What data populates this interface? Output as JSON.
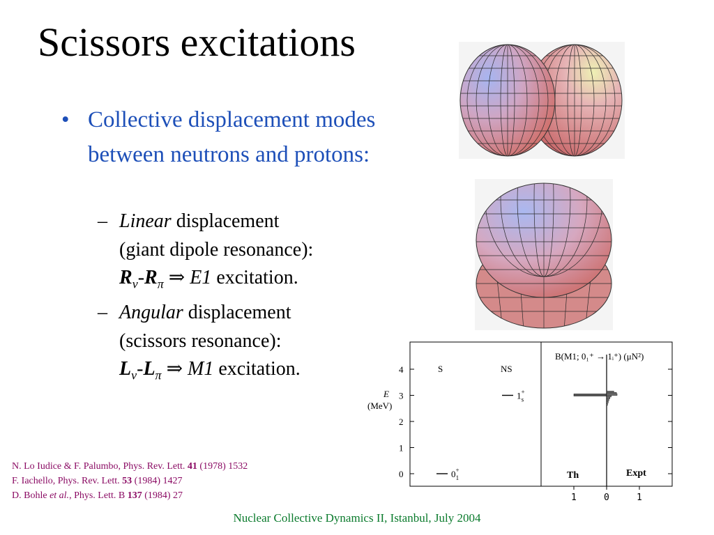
{
  "title": "Scissors excitations",
  "bullet": {
    "marker": "•",
    "text": "Collective displacement modes between neutrons and protons:"
  },
  "sub1": {
    "marker": "–",
    "italic_word": "Linear",
    "line1_rest": " displacement",
    "line2": "(giant dipole resonance):",
    "sym1": "R",
    "sub_nu": "ν",
    "sym2": "R",
    "sub_pi": "π",
    "arrow": "⇒",
    "result_italic": "E1",
    "result_rest": " excitation."
  },
  "sub2": {
    "marker": "–",
    "italic_word": "Angular",
    "line1_rest": " displacement",
    "line2": "(scissors resonance):",
    "sym1": "L",
    "sub_nu": "ν",
    "sym2": "L",
    "sub_pi": "π",
    "arrow": "⇒",
    "result_italic": "M1",
    "result_rest": " excitation."
  },
  "refs": {
    "r1_pre": "N. Lo Iudice & F. Palumbo, Phys. Rev. Lett. ",
    "r1_vol": "41",
    "r1_post": " (1978) 1532",
    "r2_pre": "F. Iachello, Phys. Rev. Lett. ",
    "r2_vol": "53",
    "r2_post": " (1984) 1427",
    "r3_pre": "D. Bohle ",
    "r3_etal": "et al.",
    "r3_mid": ", Phys. Lett. B ",
    "r3_vol": "137",
    "r3_post": " (1984) 27"
  },
  "footer": "Nuclear Collective Dynamics II, Istanbul, July 2004",
  "colors": {
    "bullet_blue": "#1d4fb8",
    "refs": "#8a0a63",
    "footer": "#0a7a2c"
  },
  "chart_data": {
    "type": "level-scheme",
    "y_ticks": [
      "0",
      "1",
      "2",
      "3",
      "4"
    ],
    "ylim": [
      0,
      4.6
    ],
    "ylabel_line1": "E",
    "ylabel_line2": "(MeV)",
    "label_S": "S",
    "label_NS": "NS",
    "levels": [
      {
        "column": "S",
        "energy": 0,
        "label": "0",
        "sub": "1",
        "sup": "+"
      },
      {
        "column": "NS",
        "energy": 3.0,
        "label": "1",
        "sub": "s",
        "sup": "+"
      }
    ],
    "bvalue_title": "B(M1; 0₁⁺ → 1ᵢ⁺) (μN²)",
    "th_value": 1.0,
    "expt_bars": [
      {
        "energy": 3.13,
        "value": 0.22
      },
      {
        "energy": 3.08,
        "value": 0.3
      },
      {
        "energy": 3.03,
        "value": 0.32
      },
      {
        "energy": 2.97,
        "value": 0.14
      },
      {
        "energy": 2.9,
        "value": 0.1
      },
      {
        "energy": 2.82,
        "value": 0.07
      },
      {
        "energy": 2.74,
        "value": 0.05
      },
      {
        "energy": 2.65,
        "value": 0.03
      }
    ],
    "x_ticks": [
      "1",
      "0",
      "1"
    ],
    "label_th": "Th",
    "label_expt": "Expt"
  }
}
